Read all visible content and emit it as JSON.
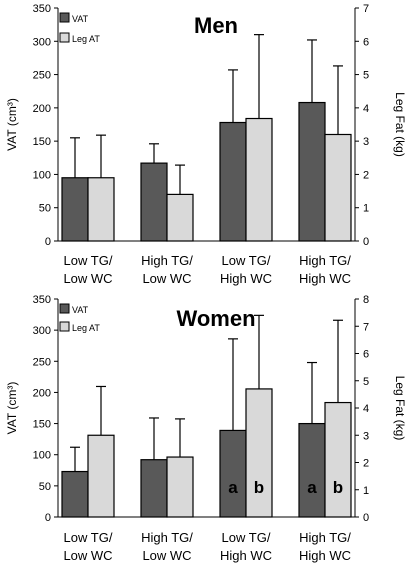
{
  "chart_data": [
    {
      "type": "bar",
      "title": "Men",
      "ylabel": "VAT (cm³)",
      "y2label": "Leg Fat (kg)",
      "ylim": [
        0,
        350
      ],
      "y2lim": [
        0,
        7
      ],
      "yticks": [
        "0",
        "50",
        "100",
        "150",
        "200",
        "250",
        "300",
        "350"
      ],
      "y2ticks": [
        "0",
        "1",
        "2",
        "3",
        "4",
        "5",
        "6",
        "7"
      ],
      "categories": [
        [
          "Low TG/",
          "Low WC"
        ],
        [
          "High TG/",
          "Low WC"
        ],
        [
          "Low TG/",
          "High WC"
        ],
        [
          "High TG/",
          "High WC"
        ]
      ],
      "series": [
        {
          "name": "VAT",
          "axis": "left",
          "color": "#595959",
          "values": [
            95,
            117,
            178,
            208
          ],
          "error_upper": [
            155,
            146,
            257,
            302
          ]
        },
        {
          "name": "Leg AT",
          "axis": "right",
          "color": "#d9d9d9",
          "values": [
            1.9,
            1.4,
            3.68,
            3.2
          ],
          "error_upper": [
            3.18,
            2.28,
            6.2,
            5.26
          ]
        }
      ],
      "annotations": [],
      "legend": "top-left",
      "grid": false
    },
    {
      "type": "bar",
      "title": "Women",
      "ylabel": "VAT (cm³)",
      "y2label": "Leg Fat (kg)",
      "ylim": [
        0,
        350
      ],
      "y2lim": [
        0,
        8
      ],
      "yticks": [
        "0",
        "50",
        "100",
        "150",
        "200",
        "250",
        "300",
        "350"
      ],
      "y2ticks": [
        "0",
        "1",
        "2",
        "3",
        "4",
        "5",
        "6",
        "7",
        "8"
      ],
      "categories": [
        [
          "Low TG/",
          "Low WC"
        ],
        [
          "High TG/",
          "Low WC"
        ],
        [
          "Low TG/",
          "High WC"
        ],
        [
          "High TG/",
          "High WC"
        ]
      ],
      "series": [
        {
          "name": "VAT",
          "axis": "left",
          "color": "#595959",
          "values": [
            73,
            92,
            139,
            150
          ],
          "error_upper": [
            112,
            159,
            286,
            248
          ]
        },
        {
          "name": "Leg AT",
          "axis": "right",
          "color": "#d9d9d9",
          "values": [
            3.0,
            2.2,
            4.7,
            4.2
          ],
          "error_upper": [
            4.79,
            3.6,
            7.4,
            7.22
          ]
        }
      ],
      "annotations": [
        {
          "category": 2,
          "series": 0,
          "text": "a"
        },
        {
          "category": 2,
          "series": 1,
          "text": "b"
        },
        {
          "category": 3,
          "series": 0,
          "text": "a"
        },
        {
          "category": 3,
          "series": 1,
          "text": "b"
        }
      ],
      "legend": "top-left",
      "grid": false
    }
  ]
}
